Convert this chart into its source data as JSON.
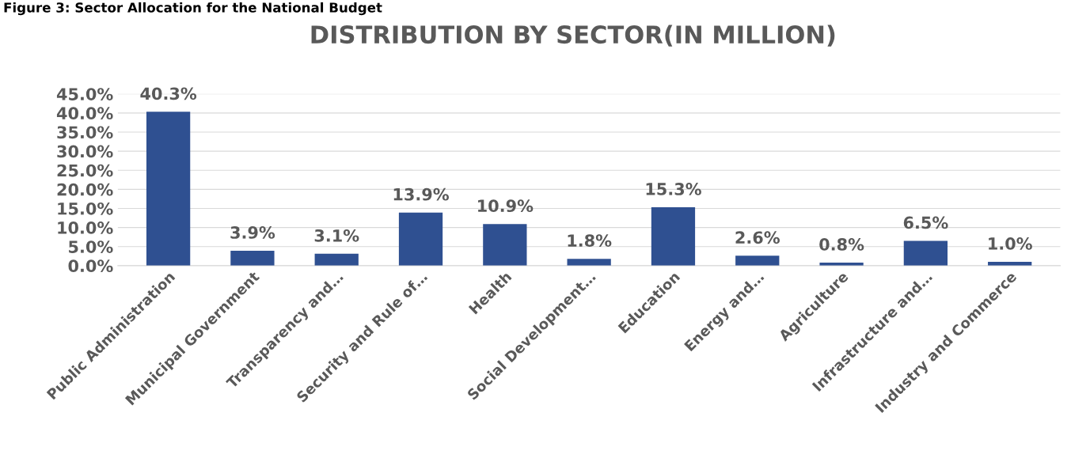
{
  "chart_data": {
    "type": "bar",
    "title": "DISTRIBUTION BY SECTOR(IN MILLION)",
    "annotations": [
      "Figure 3: Sector Allocation for the National Budget"
    ],
    "categories": [
      "Public Administration",
      "Municipal Government",
      "Transparency and…",
      "Security and Rule of…",
      "Health",
      "Social Development…",
      "Education",
      "Energy and…",
      "Agriculture",
      "Infrastructure and…",
      "Industry and Commerce"
    ],
    "values": [
      40.3,
      3.9,
      3.1,
      13.9,
      10.9,
      1.8,
      15.3,
      2.6,
      0.8,
      6.5,
      1.0
    ],
    "value_labels": [
      "40.3%",
      "3.9%",
      "3.1%",
      "13.9%",
      "10.9%",
      "1.8%",
      "15.3%",
      "2.6%",
      "0.8%",
      "6.5%",
      "1.0%"
    ],
    "color": "#2f5091",
    "ylim": [
      0,
      45
    ],
    "yticks": [
      {
        "value": 0,
        "label": "0.0%"
      },
      {
        "value": 5,
        "label": "5.0%"
      },
      {
        "value": 10,
        "label": "10.0%"
      },
      {
        "value": 15,
        "label": "15.0%"
      },
      {
        "value": 20,
        "label": "20.0%"
      },
      {
        "value": 25,
        "label": "25.0%"
      },
      {
        "value": 30,
        "label": "30.0%"
      },
      {
        "value": 35,
        "label": "35.0%"
      },
      {
        "value": 40,
        "label": "40.0%"
      },
      {
        "value": 45,
        "label": "45.0%"
      }
    ],
    "grid": "y",
    "legend": false
  }
}
